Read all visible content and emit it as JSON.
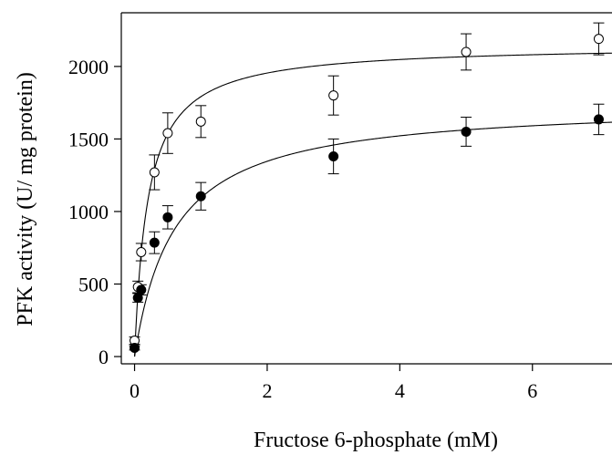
{
  "chart_data": {
    "type": "scatter",
    "title": "",
    "xlabel": "Fructose 6-phosphate (mM)",
    "ylabel": "PFK activity (U/ mg protein)",
    "xlim": [
      -0.2,
      7.2
    ],
    "ylim": [
      -50,
      2370
    ],
    "x_ticks": [
      0,
      2,
      4,
      6
    ],
    "y_ticks": [
      0,
      500,
      1000,
      1500,
      2000
    ],
    "grid": false,
    "legend": "none",
    "series": [
      {
        "marker": "open-circle",
        "points": [
          {
            "x": 0.0,
            "y": 110,
            "err": 25
          },
          {
            "x": 0.05,
            "y": 480,
            "err": 40
          },
          {
            "x": 0.1,
            "y": 720,
            "err": 60
          },
          {
            "x": 0.3,
            "y": 1270,
            "err": 120
          },
          {
            "x": 0.5,
            "y": 1540,
            "err": 140
          },
          {
            "x": 1.0,
            "y": 1620,
            "err": 110
          },
          {
            "x": 3.0,
            "y": 1800,
            "err": 135
          },
          {
            "x": 5.0,
            "y": 2100,
            "err": 125
          },
          {
            "x": 7.0,
            "y": 2190,
            "err": 110
          }
        ],
        "fit": {
          "vmax": 2150,
          "km": 0.2
        }
      },
      {
        "marker": "filled-circle",
        "points": [
          {
            "x": 0.0,
            "y": 60,
            "err": 15
          },
          {
            "x": 0.05,
            "y": 405,
            "err": 30
          },
          {
            "x": 0.1,
            "y": 460,
            "err": 35
          },
          {
            "x": 0.3,
            "y": 785,
            "err": 75
          },
          {
            "x": 0.5,
            "y": 960,
            "err": 80
          },
          {
            "x": 1.0,
            "y": 1105,
            "err": 95
          },
          {
            "x": 3.0,
            "y": 1380,
            "err": 120
          },
          {
            "x": 5.0,
            "y": 1550,
            "err": 100
          },
          {
            "x": 7.0,
            "y": 1635,
            "err": 105
          }
        ],
        "fit": {
          "vmax": 1750,
          "km": 0.6
        }
      }
    ]
  }
}
